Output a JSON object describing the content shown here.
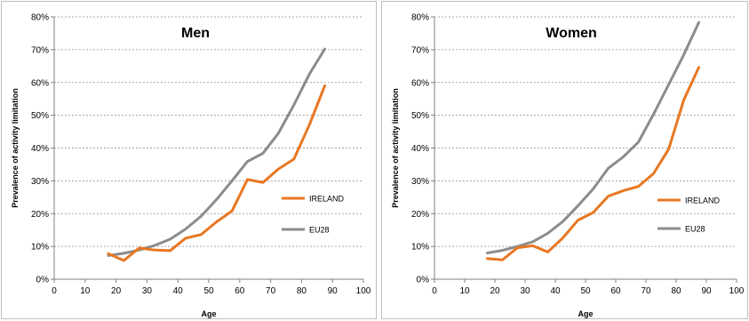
{
  "chart_data": [
    {
      "type": "line",
      "title": "Men",
      "xlabel": "Age",
      "ylabel": "Prevalence of activity limitation",
      "xlim": [
        0,
        100
      ],
      "ylim": [
        0,
        80
      ],
      "x_ticks": [
        "0",
        "10",
        "20",
        "30",
        "40",
        "50",
        "60",
        "70",
        "80",
        "90",
        "100"
      ],
      "y_ticks": [
        "0%",
        "10%",
        "20%",
        "30%",
        "40%",
        "50%",
        "60%",
        "70%",
        "80%"
      ],
      "grid": "horizontal",
      "legend": "right",
      "x": [
        17.5,
        22.5,
        27.5,
        32.5,
        37.5,
        42.5,
        47.5,
        52.5,
        57.5,
        62.5,
        67.5,
        72.5,
        77.5,
        82.5,
        87.5
      ],
      "series": [
        {
          "name": "IRELAND",
          "color": "#E87722",
          "values": [
            7.8,
            5.7,
            9.5,
            8.9,
            8.7,
            12.5,
            13.6,
            17.5,
            20.8,
            30.4,
            29.5,
            33.6,
            36.6,
            47.0,
            59.0
          ]
        },
        {
          "name": "EU28",
          "color": "#8C8C8C",
          "values": [
            7.2,
            7.9,
            8.9,
            10.3,
            12.2,
            15.3,
            19.2,
            24.3,
            30.0,
            35.9,
            38.4,
            44.5,
            53.1,
            62.5,
            70.2
          ]
        }
      ]
    },
    {
      "type": "line",
      "title": "Women",
      "xlabel": "Age",
      "ylabel": "Prevalence of activity limitation",
      "xlim": [
        0,
        100
      ],
      "ylim": [
        0,
        80
      ],
      "x_ticks": [
        "0",
        "10",
        "20",
        "30",
        "40",
        "50",
        "60",
        "70",
        "80",
        "90",
        "100"
      ],
      "y_ticks": [
        "0%",
        "10%",
        "20%",
        "30%",
        "40%",
        "50%",
        "60%",
        "70%",
        "80%"
      ],
      "grid": "horizontal",
      "legend": "right",
      "x": [
        17.5,
        22.5,
        27.5,
        32.5,
        37.5,
        42.5,
        47.5,
        52.5,
        57.5,
        62.5,
        67.5,
        72.5,
        77.5,
        82.5,
        87.5
      ],
      "series": [
        {
          "name": "IRELAND",
          "color": "#E87722",
          "values": [
            6.3,
            5.9,
            9.6,
            10.2,
            8.3,
            12.6,
            18.0,
            20.3,
            25.3,
            27.0,
            28.3,
            32.2,
            39.6,
            54.6,
            64.6
          ]
        },
        {
          "name": "EU28",
          "color": "#8C8C8C",
          "values": [
            8.0,
            8.8,
            10.0,
            11.4,
            14.0,
            17.6,
            22.4,
            27.5,
            33.8,
            37.3,
            41.8,
            50.3,
            59.3,
            68.4,
            78.3
          ]
        }
      ]
    }
  ]
}
